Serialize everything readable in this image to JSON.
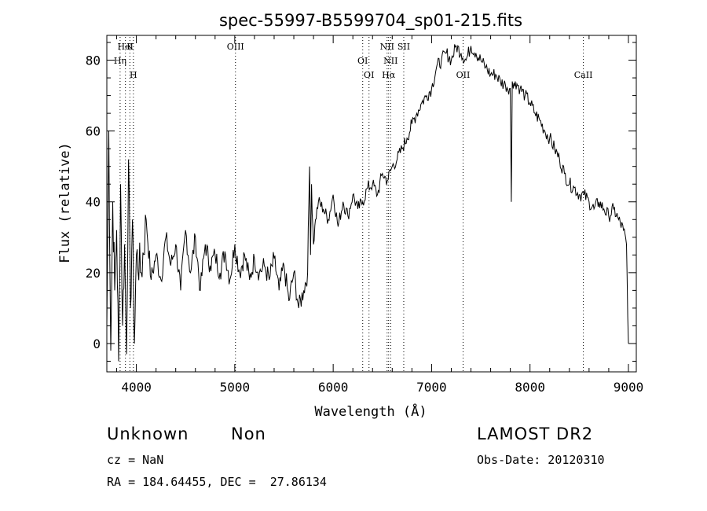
{
  "chart_data": {
    "type": "line",
    "title": "spec-55997-B5599704_sp01-215.fits",
    "xlabel": "Wavelength (Å)",
    "ylabel": "Flux (relative)",
    "xlim": [
      3700,
      9080
    ],
    "ylim": [
      -8,
      87
    ],
    "xticks": [
      4000,
      5000,
      6000,
      7000,
      8000,
      9000
    ],
    "yticks": [
      0,
      20,
      40,
      60,
      80
    ],
    "grid": false,
    "series": [
      {
        "x": [
          3700,
          3720,
          3740,
          3760,
          3780,
          3800,
          3820,
          3840,
          3860,
          3880,
          3900,
          3920,
          3940,
          3960,
          3980,
          4000,
          4050,
          4100,
          4150,
          4200,
          4250,
          4300,
          4350,
          4400,
          4450,
          4500,
          4550,
          4600,
          4650,
          4700,
          4750,
          4800,
          4850,
          4900,
          4950,
          5000,
          5050,
          5100,
          5150,
          5200,
          5250,
          5300,
          5350,
          5400,
          5450,
          5500,
          5550,
          5600,
          5650,
          5700,
          5740,
          5760,
          5770,
          5780,
          5800,
          5820,
          5850,
          5900,
          5950,
          6000,
          6050,
          6100,
          6150,
          6200,
          6250,
          6300,
          6350,
          6400,
          6450,
          6500,
          6550,
          6600,
          6650,
          6700,
          6750,
          6800,
          6850,
          6900,
          6950,
          7000,
          7050,
          7100,
          7150,
          7200,
          7250,
          7300,
          7350,
          7400,
          7450,
          7500,
          7550,
          7600,
          7650,
          7700,
          7750,
          7800,
          7810,
          7820,
          7830,
          7850,
          7900,
          7950,
          8000,
          8050,
          8100,
          8150,
          8200,
          8250,
          8300,
          8350,
          8400,
          8450,
          8500,
          8550,
          8600,
          8650,
          8700,
          8750,
          8800,
          8850,
          8900,
          8950,
          8980,
          9000
        ],
        "y": [
          5,
          60,
          -2,
          40,
          15,
          32,
          -5,
          45,
          5,
          28,
          -3,
          52,
          10,
          35,
          0,
          25,
          20,
          35,
          18,
          25,
          18,
          30,
          22,
          28,
          15,
          32,
          20,
          30,
          15,
          28,
          22,
          25,
          20,
          26,
          18,
          28,
          20,
          25,
          18,
          24,
          20,
          22,
          18,
          24,
          15,
          22,
          12,
          20,
          10,
          15,
          20,
          50,
          25,
          45,
          28,
          35,
          40,
          38,
          35,
          42,
          33,
          40,
          36,
          42,
          38,
          40,
          44,
          45,
          42,
          48,
          46,
          50,
          52,
          55,
          58,
          62,
          65,
          68,
          70,
          72,
          78,
          80,
          82,
          80,
          84,
          82,
          80,
          84,
          82,
          80,
          78,
          76,
          76,
          74,
          73,
          72,
          40,
          74,
          72,
          74,
          72,
          70,
          68,
          65,
          63,
          60,
          58,
          55,
          52,
          48,
          45,
          44,
          42,
          42,
          40,
          38,
          40,
          38,
          36,
          38,
          35,
          32,
          28,
          0
        ]
      }
    ],
    "lines": [
      {
        "label": "HeI",
        "x": 3889
      },
      {
        "label": "Hη",
        "x": 3835
      },
      {
        "label": "H",
        "x": 3970
      },
      {
        "label": "K",
        "x": 3934
      },
      {
        "label": "OIII",
        "x": 5007
      },
      {
        "label": "OI",
        "x": 6300
      },
      {
        "label": "OI",
        "x": 6364
      },
      {
        "label": "NII",
        "x": 6548
      },
      {
        "label": "NII",
        "x": 6584
      },
      {
        "label": "Hα",
        "x": 6563
      },
      {
        "label": "SII",
        "x": 6717
      },
      {
        "label": "OII",
        "x": 7320
      },
      {
        "label": "CaII",
        "x": 8542
      }
    ]
  },
  "footer": {
    "class_label": "Unknown",
    "subclass_label": "Non",
    "survey": "LAMOST DR2",
    "cz": "cz = NaN",
    "obs_date": "Obs-Date: 20120310",
    "coords": "RA = 184.64455, DEC =  27.86134"
  }
}
